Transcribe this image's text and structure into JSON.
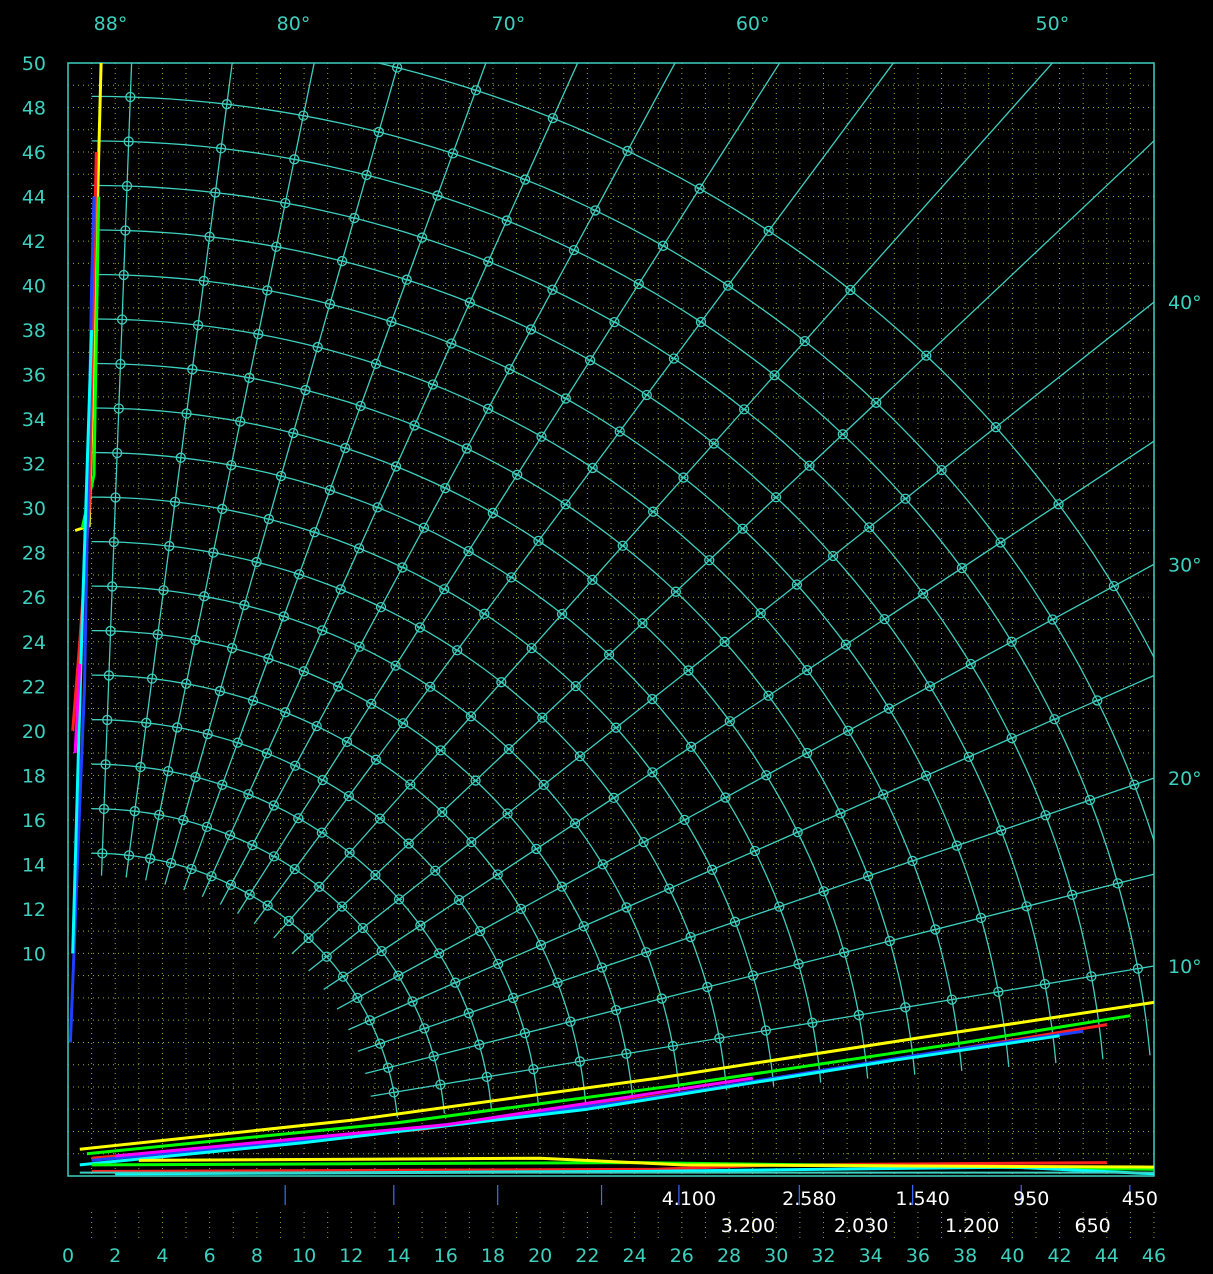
{
  "chart_data": {
    "type": "line",
    "title": "",
    "xlabel": "",
    "ylabel": "",
    "xlim": [
      0,
      46
    ],
    "ylim": [
      0,
      50
    ],
    "grid": true,
    "x_ticks": [
      "0",
      "2",
      "4",
      "6",
      "8",
      "10",
      "12",
      "14",
      "16",
      "18",
      "20",
      "22",
      "24",
      "26",
      "28",
      "30",
      "32",
      "34",
      "36",
      "38",
      "40",
      "42",
      "44",
      "46"
    ],
    "y_ticks": [
      "10",
      "12",
      "14",
      "16",
      "18",
      "20",
      "22",
      "24",
      "26",
      "28",
      "30",
      "32",
      "34",
      "36",
      "38",
      "40",
      "42",
      "44",
      "46",
      "48",
      "50"
    ],
    "boom_angle_labels": [
      {
        "label": "88°",
        "angle": 88
      },
      {
        "label": "80°",
        "angle": 80
      },
      {
        "label": "70°",
        "angle": 70
      },
      {
        "label": "60°",
        "angle": 60
      },
      {
        "label": "50°",
        "angle": 50
      },
      {
        "label": "40°",
        "angle": 40
      },
      {
        "label": "30°",
        "angle": 30
      },
      {
        "label": "20°",
        "angle": 20
      },
      {
        "label": "10°",
        "angle": 10
      }
    ],
    "boom_angle_lines": [
      88,
      83,
      79,
      75,
      71,
      67,
      63,
      59,
      55,
      50,
      45,
      40,
      35,
      30,
      25,
      20,
      15,
      10
    ],
    "radius_arcs": [
      13,
      15,
      17,
      19,
      21,
      23,
      25,
      27,
      29,
      31,
      33,
      35,
      37,
      39,
      41,
      43,
      45,
      47,
      50
    ],
    "load_labels_row1": [
      {
        "label": "4.100",
        "x": 26.3
      },
      {
        "label": "2.580",
        "x": 31.4
      },
      {
        "label": "1.540",
        "x": 36.2
      },
      {
        "label": "950",
        "x": 40.8
      },
      {
        "label": "450",
        "x": 45.4
      }
    ],
    "load_labels_row2": [
      {
        "label": "3.200",
        "x": 28.8
      },
      {
        "label": "2.030",
        "x": 33.6
      },
      {
        "label": "1.200",
        "x": 38.3
      },
      {
        "label": "650",
        "x": 43.4
      }
    ],
    "series": [
      {
        "color": "#ffff00",
        "points": [
          [
            0.3,
            29
          ],
          [
            0.9,
            29.2
          ],
          [
            1.4,
            50
          ]
        ]
      },
      {
        "color": "#00ff00",
        "points": [
          [
            0.6,
            29.1
          ],
          [
            1.1,
            31.5
          ],
          [
            1.3,
            44
          ]
        ]
      },
      {
        "color": "#ff2020",
        "points": [
          [
            0.2,
            20
          ],
          [
            0.5,
            24
          ],
          [
            0.9,
            30
          ],
          [
            1.2,
            46
          ]
        ]
      },
      {
        "color": "#2040ff",
        "points": [
          [
            0.1,
            6
          ],
          [
            0.4,
            14
          ],
          [
            0.7,
            22
          ],
          [
            1.0,
            40
          ],
          [
            1.1,
            44
          ]
        ]
      },
      {
        "color": "#00ffff",
        "points": [
          [
            0.2,
            10
          ],
          [
            0.6,
            25
          ],
          [
            1.0,
            38
          ]
        ]
      },
      {
        "color": "#ff00ff",
        "points": [
          [
            0.3,
            19
          ],
          [
            0.5,
            23
          ]
        ]
      },
      {
        "color": "#ffff00",
        "points": [
          [
            0.5,
            1.2
          ],
          [
            12,
            2.5
          ],
          [
            25,
            4.4
          ],
          [
            36,
            6.2
          ],
          [
            46,
            7.8
          ]
        ]
      },
      {
        "color": "#00ff00",
        "points": [
          [
            0.8,
            1.0
          ],
          [
            14,
            2.4
          ],
          [
            26,
            4.1
          ],
          [
            38,
            6.0
          ],
          [
            45,
            7.2
          ]
        ]
      },
      {
        "color": "#ff2020",
        "points": [
          [
            1,
            0.8
          ],
          [
            15,
            2.1
          ],
          [
            27,
            3.9
          ],
          [
            40,
            6.1
          ],
          [
            44,
            6.8
          ]
        ]
      },
      {
        "color": "#2040ff",
        "points": [
          [
            1,
            0.7
          ],
          [
            13,
            1.9
          ],
          [
            24,
            3.4
          ],
          [
            37,
            5.6
          ],
          [
            43,
            6.5
          ]
        ]
      },
      {
        "color": "#00ffff",
        "points": [
          [
            0.5,
            0.5
          ],
          [
            10,
            1.5
          ],
          [
            22,
            3.0
          ],
          [
            35,
            5.2
          ],
          [
            42,
            6.3
          ]
        ]
      },
      {
        "color": "#ff00ff",
        "points": [
          [
            2,
            0.9
          ],
          [
            16,
            2.3
          ],
          [
            29,
            4.4
          ]
        ]
      },
      {
        "color": "#ff2020",
        "points": [
          [
            1,
            0.2
          ],
          [
            25,
            0.3
          ],
          [
            30,
            0.5
          ],
          [
            44,
            0.6
          ]
        ]
      },
      {
        "color": "#00ff00",
        "points": [
          [
            1,
            0.5
          ],
          [
            24,
            0.6
          ],
          [
            46,
            0.3
          ]
        ]
      },
      {
        "color": "#00ffff",
        "points": [
          [
            2,
            0.1
          ],
          [
            24,
            0.2
          ],
          [
            40,
            0.4
          ],
          [
            46,
            0.1
          ]
        ]
      },
      {
        "color": "#ffff00",
        "points": [
          [
            3,
            0.7
          ],
          [
            20,
            0.8
          ],
          [
            26,
            0.5
          ],
          [
            46,
            0.4
          ]
        ]
      }
    ]
  }
}
